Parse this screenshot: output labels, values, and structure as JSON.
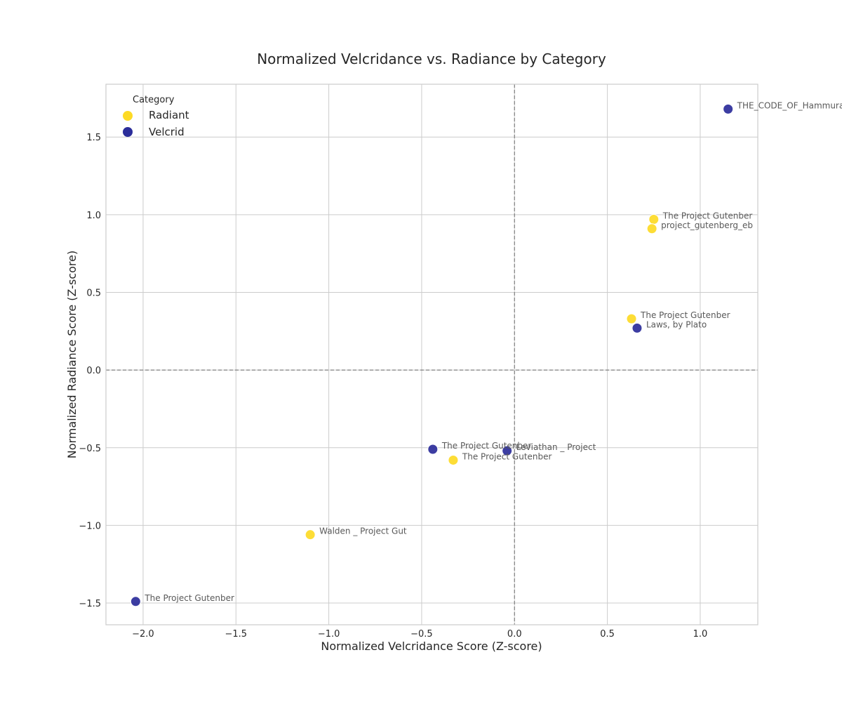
{
  "chart_data": {
    "type": "scatter",
    "title": "Normalized Velcridance vs. Radiance by Category",
    "xlabel": "Normalized Velcridance Score (Z-score)",
    "ylabel": "Normalized Radiance Score (Z-score)",
    "xlim": [
      -2.2,
      1.31
    ],
    "ylim": [
      -1.64,
      1.84
    ],
    "xticks": [
      -2.0,
      -1.5,
      -1.0,
      -0.5,
      0.0,
      0.5,
      1.0
    ],
    "xtick_labels": [
      "−2.0",
      "−1.5",
      "−1.0",
      "−0.5",
      "0.0",
      "0.5",
      "1.0"
    ],
    "yticks": [
      -1.5,
      -1.0,
      -0.5,
      0.0,
      0.5,
      1.0,
      1.5
    ],
    "ytick_labels": [
      "−1.5",
      "−1.0",
      "−0.5",
      "0.0",
      "0.5",
      "1.0",
      "1.5"
    ],
    "grid": true,
    "reference_lines": {
      "x": 0,
      "y": 0,
      "style": "dashed"
    },
    "legend": {
      "title": "Category",
      "placement": "top-left",
      "entries": [
        {
          "name": "Radiant",
          "color": "#FDDA25"
        },
        {
          "name": "Velcrid",
          "color": "#2B2D9A"
        }
      ]
    },
    "series": [
      {
        "name": "Radiant",
        "color": "#FDDA25",
        "points": [
          {
            "x": 0.75,
            "y": 0.97,
            "label": "The Project Gutenber"
          },
          {
            "x": 0.74,
            "y": 0.91,
            "label": "project_gutenberg_eb"
          },
          {
            "x": 0.63,
            "y": 0.33,
            "label": "The Project Gutenber"
          },
          {
            "x": -0.33,
            "y": -0.58,
            "label": "The Project Gutenber"
          },
          {
            "x": -1.1,
            "y": -1.06,
            "label": "Walden _ Project Gut"
          }
        ]
      },
      {
        "name": "Velcrid",
        "color": "#2B2D9A",
        "points": [
          {
            "x": 1.15,
            "y": 1.68,
            "label": "THE_CODE_OF_Hammura"
          },
          {
            "x": 0.66,
            "y": 0.27,
            "label": "Laws, by Plato"
          },
          {
            "x": -0.44,
            "y": -0.51,
            "label": "The Project Gutenber"
          },
          {
            "x": -0.04,
            "y": -0.52,
            "label": "Leviathan _ Project"
          },
          {
            "x": -2.04,
            "y": -1.49,
            "label": "The Project Gutenber"
          }
        ]
      }
    ]
  }
}
